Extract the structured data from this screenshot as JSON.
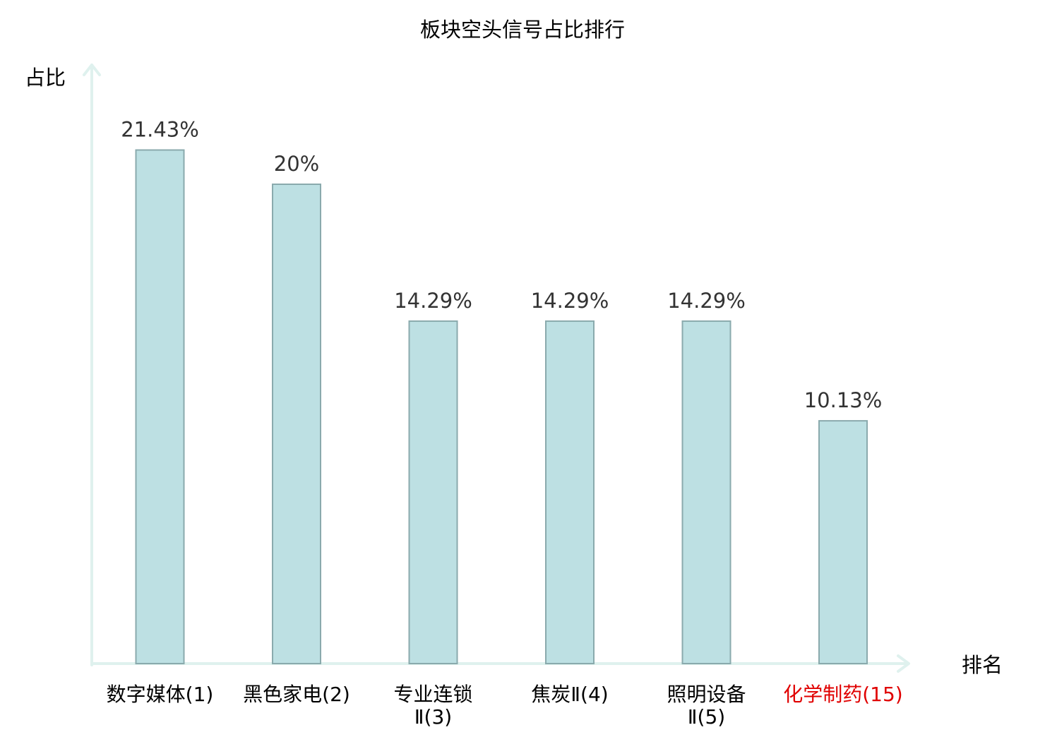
{
  "chart_data": {
    "type": "bar",
    "title": "板块空头信号占比排行",
    "ylabel": "占比",
    "xlabel": "排名",
    "categories": [
      {
        "lines": [
          "数字媒体(1)"
        ],
        "highlight": false
      },
      {
        "lines": [
          "黑色家电(2)"
        ],
        "highlight": false
      },
      {
        "lines": [
          "专业连锁",
          "Ⅱ(3)"
        ],
        "highlight": false
      },
      {
        "lines": [
          "焦炭Ⅱ(4)"
        ],
        "highlight": false
      },
      {
        "lines": [
          "照明设备",
          "Ⅱ(5)"
        ],
        "highlight": false
      },
      {
        "lines": [
          "化学制药(15)"
        ],
        "highlight": true
      }
    ],
    "values": [
      21.43,
      20,
      14.29,
      14.29,
      14.29,
      10.13
    ],
    "value_labels": [
      "21.43%",
      "20%",
      "14.29%",
      "14.29%",
      "14.29%",
      "10.13%"
    ],
    "ylim": [
      0,
      23
    ],
    "grid": false,
    "legend": "none",
    "colors": {
      "bar_fill": "#bde0e3",
      "bar_stroke": "#8aaaad",
      "axis": "#dff1ee",
      "text": "#333333",
      "highlight": "#e00000"
    }
  }
}
